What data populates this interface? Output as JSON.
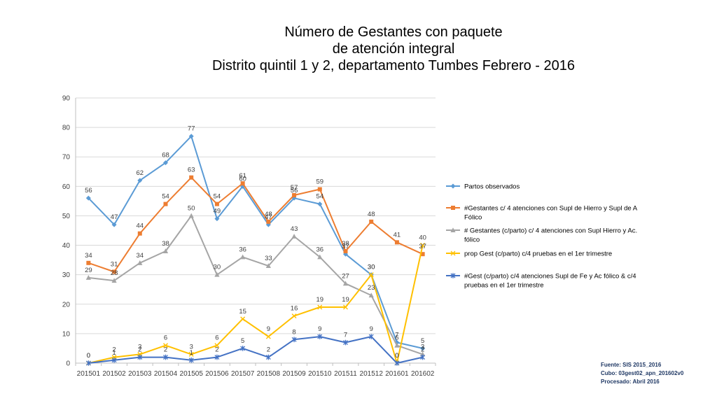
{
  "title_lines": [
    "Número de Gestantes con paquete",
    "de atención integral",
    "Distrito quintil 1 y 2, departamento Tumbes Febrero - 2016"
  ],
  "source_note": {
    "line1": "Fuente: SIS 2015_2016",
    "line2": "Cubo: 03gest02_apn_201602v0",
    "line3": "Procesado: Abril 2016"
  },
  "chart_data": {
    "type": "line",
    "title": "Número de Gestantes con paquete de atención integral Distrito quintil 1 y 2, departamento Tumbes Febrero - 2016",
    "xlabel": "",
    "ylabel": "",
    "ylim": [
      0,
      90
    ],
    "yticks": [
      0,
      10,
      20,
      30,
      40,
      50,
      60,
      70,
      80,
      90
    ],
    "grid": true,
    "legend_position": "right",
    "categories": [
      "201501",
      "201502",
      "201503",
      "201504",
      "201505",
      "201506",
      "201507",
      "201508",
      "201509",
      "201510",
      "201511",
      "201512",
      "201601",
      "201602"
    ],
    "series": [
      {
        "name": "Partos observados",
        "color": "#5b9bd5",
        "marker": "diamond",
        "values": [
          56,
          47,
          62,
          68,
          77,
          49,
          60,
          47,
          56,
          54,
          37,
          30,
          7,
          5
        ]
      },
      {
        "name": "#Gestantes c/ 4 atenciones con Supl de Hierro y Supl de A Fólico",
        "color": "#ed7d31",
        "marker": "square",
        "values": [
          34,
          31,
          44,
          54,
          63,
          54,
          61,
          48,
          57,
          59,
          38,
          48,
          41,
          37
        ]
      },
      {
        "name": "# Gestantes (c/parto) c/ 4 atenciones con Supl Hierro y Ac. fólico",
        "color": "#a5a5a5",
        "marker": "triangle",
        "values": [
          29,
          28,
          34,
          38,
          50,
          30,
          36,
          33,
          43,
          36,
          27,
          23,
          6,
          3
        ]
      },
      {
        "name": "prop Gest (c/parto) c/4 pruebas en el 1er trimestre",
        "color": "#ffc000",
        "marker": "x",
        "values": [
          0,
          2,
          3,
          6,
          3,
          6,
          15,
          9,
          16,
          19,
          19,
          30,
          0,
          40
        ]
      },
      {
        "name": "#Gest (c/parto) c/4 atenciones Supl de Fe y Ac fólico & c/4 pruebas en el 1er trimestre",
        "color": "#4472c4",
        "marker": "star",
        "values": [
          0,
          1,
          2,
          2,
          1,
          2,
          5,
          2,
          8,
          9,
          7,
          9,
          0,
          2
        ]
      }
    ],
    "legend_lines": [
      [
        "Partos observados"
      ],
      [
        "#Gestantes c/ 4 atenciones con Supl de Hierro y Supl de A",
        "Fólico"
      ],
      [
        "# Gestantes (c/parto) c/ 4 atenciones con Supl Hierro y Ac.",
        "fólico"
      ],
      [
        "prop Gest (c/parto) c/4 pruebas en el 1er trimestre"
      ],
      [
        "#Gest (c/parto) c/4 atenciones Supl de Fe y Ac fólico & c/4",
        "pruebas en el 1er trimestre"
      ]
    ]
  }
}
